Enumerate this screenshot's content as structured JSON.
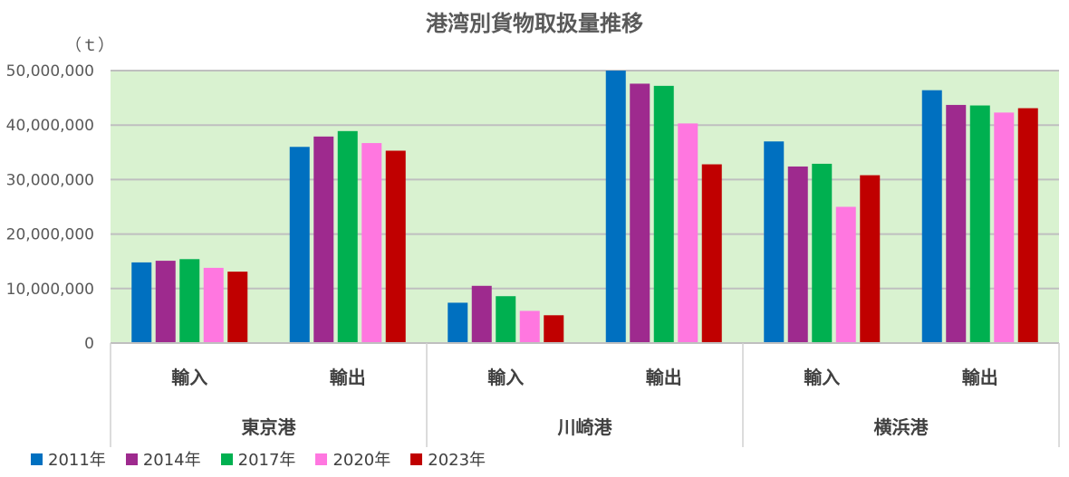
{
  "chart_data": {
    "type": "bar",
    "title": "港湾別貨物取扱量推移",
    "ylabel": "（ｔ）",
    "xlabel": "",
    "ylim": [
      0,
      50000000
    ],
    "yticks": [
      0,
      10000000,
      20000000,
      30000000,
      40000000,
      50000000
    ],
    "ytick_labels": [
      "0",
      "10,000,000",
      "20,000,000",
      "30,000,000",
      "40,000,000",
      "50,000,000"
    ],
    "grid": true,
    "legend_position": "bottom-left",
    "plot_background": "#d9f2d0",
    "groups": [
      {
        "label": "東京港",
        "categories": [
          "輸入",
          "輸出"
        ]
      },
      {
        "label": "川崎港",
        "categories": [
          "輸入",
          "輸出"
        ]
      },
      {
        "label": "横浜港",
        "categories": [
          "輸入",
          "輸出"
        ]
      }
    ],
    "categories": [
      "東京港 輸入",
      "東京港 輸出",
      "川崎港 輸入",
      "川崎港 輸出",
      "横浜港 輸入",
      "横浜港 輸出"
    ],
    "series": [
      {
        "name": "2011年",
        "color": "#0070c0",
        "values": [
          14800000,
          36000000,
          7400000,
          50000000,
          37000000,
          46400000
        ]
      },
      {
        "name": "2014年",
        "color": "#9e2a8e",
        "values": [
          15100000,
          37900000,
          10500000,
          47600000,
          32400000,
          43700000
        ]
      },
      {
        "name": "2017年",
        "color": "#00b050",
        "values": [
          15400000,
          38900000,
          8600000,
          47200000,
          32900000,
          43600000
        ]
      },
      {
        "name": "2020年",
        "color": "#ff77e0",
        "values": [
          13800000,
          36700000,
          5900000,
          40300000,
          25000000,
          42300000
        ]
      },
      {
        "name": "2023年",
        "color": "#c00000",
        "values": [
          13100000,
          35300000,
          5100000,
          32800000,
          30800000,
          43100000
        ]
      }
    ]
  }
}
